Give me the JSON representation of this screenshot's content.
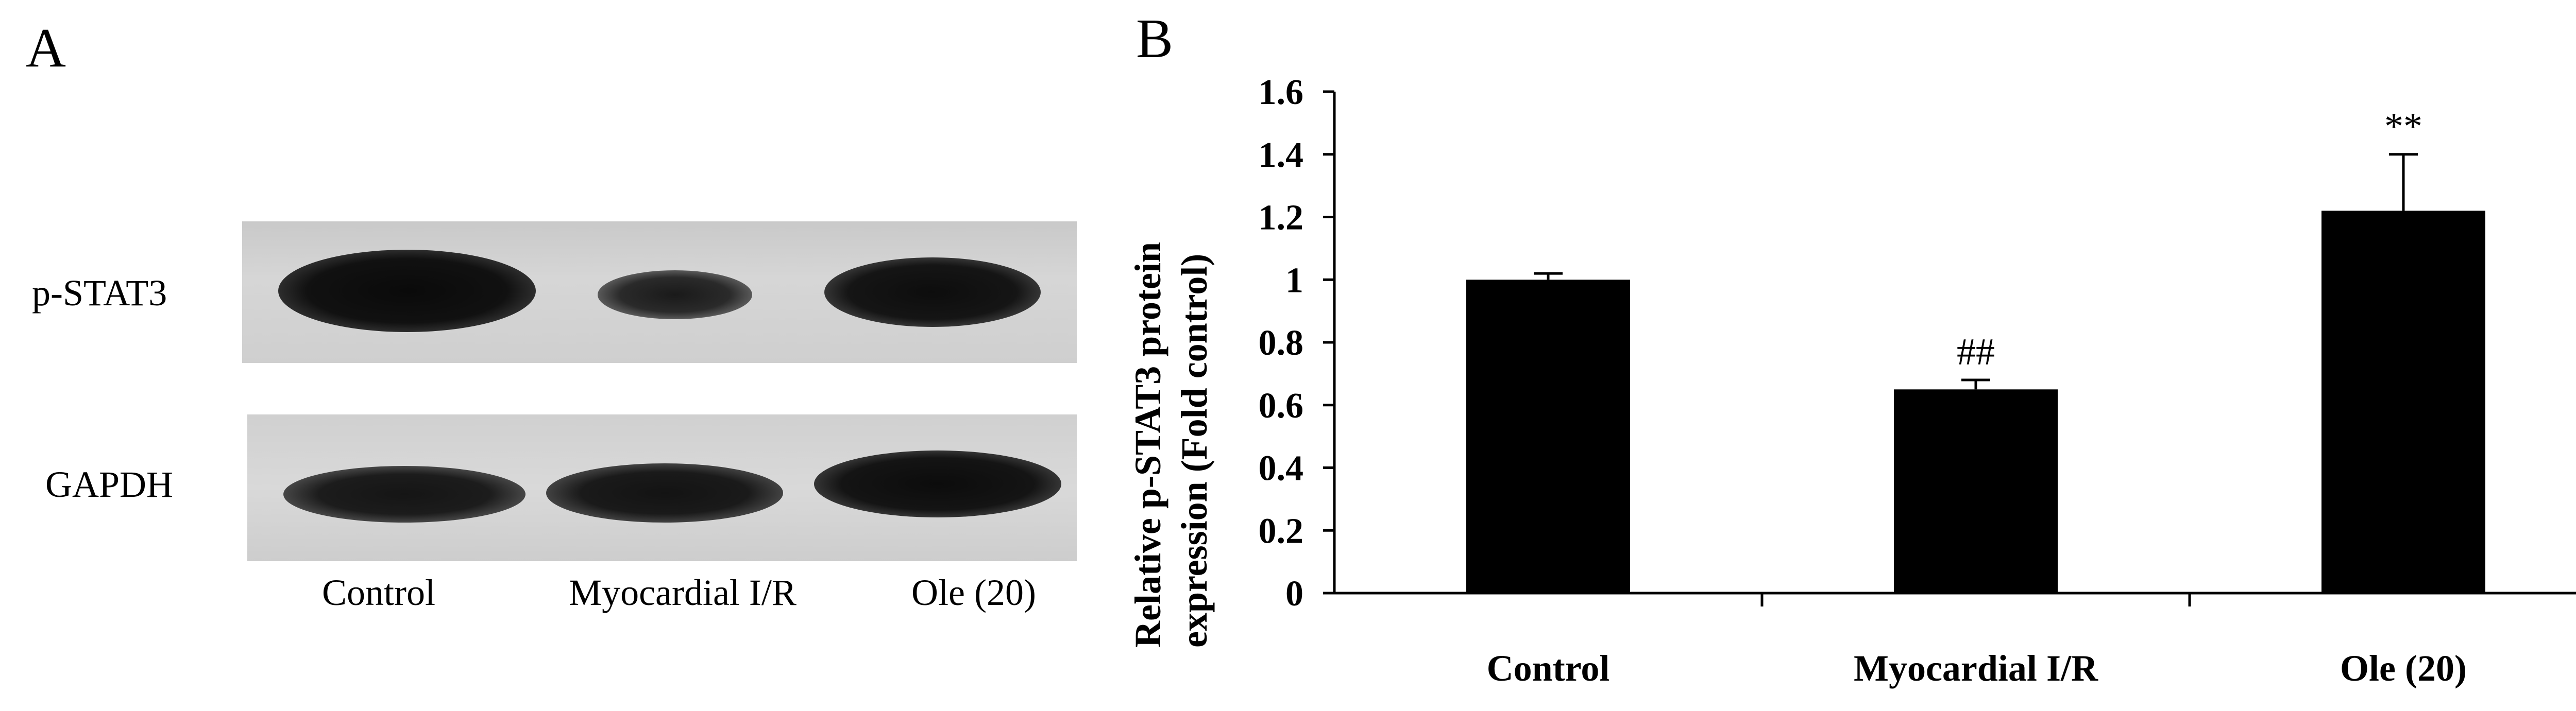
{
  "panel_a": {
    "letter": "A",
    "rows": [
      "p-STAT3",
      "GAPDH"
    ],
    "lanes": [
      "Control",
      "Myocardial I/R",
      "Ole (20)"
    ]
  },
  "panel_b": {
    "letter": "B"
  },
  "chart_data": {
    "type": "bar",
    "categories": [
      "Control",
      "Myocardial I/R",
      "Ole (20)"
    ],
    "values": [
      1.0,
      0.65,
      1.22
    ],
    "errors": [
      0.02,
      0.03,
      0.18
    ],
    "annotations": [
      "",
      "##",
      "**"
    ],
    "ylabel": "Relative p-STAT3 protein expression  (Fold control)",
    "ylim": [
      0,
      1.6
    ],
    "yticks": [
      "0",
      "0.2",
      "0.4",
      "0.6",
      "0.8",
      "1",
      "1.2",
      "1.4",
      "1.6"
    ],
    "grid": false,
    "bar_color": "#000000"
  }
}
